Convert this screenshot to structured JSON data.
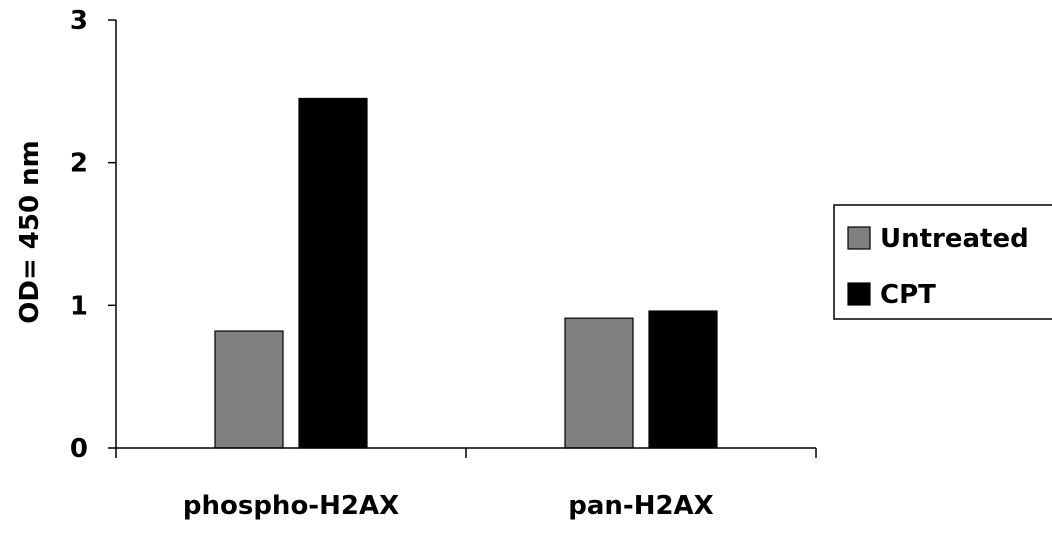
{
  "chart_data": {
    "type": "bar",
    "categories": [
      "phospho-H2AX",
      "pan-H2AX"
    ],
    "series": [
      {
        "name": "Untreated",
        "values": [
          0.82,
          0.91
        ],
        "color": "#808080"
      },
      {
        "name": "CPT",
        "values": [
          2.45,
          0.96
        ],
        "color": "#000000"
      }
    ],
    "xlabel": "",
    "ylabel": "OD= 450 nm",
    "ylim": [
      0,
      3
    ],
    "yticks": [
      0,
      1,
      2,
      3
    ],
    "grid": false,
    "legend_position": "right"
  }
}
